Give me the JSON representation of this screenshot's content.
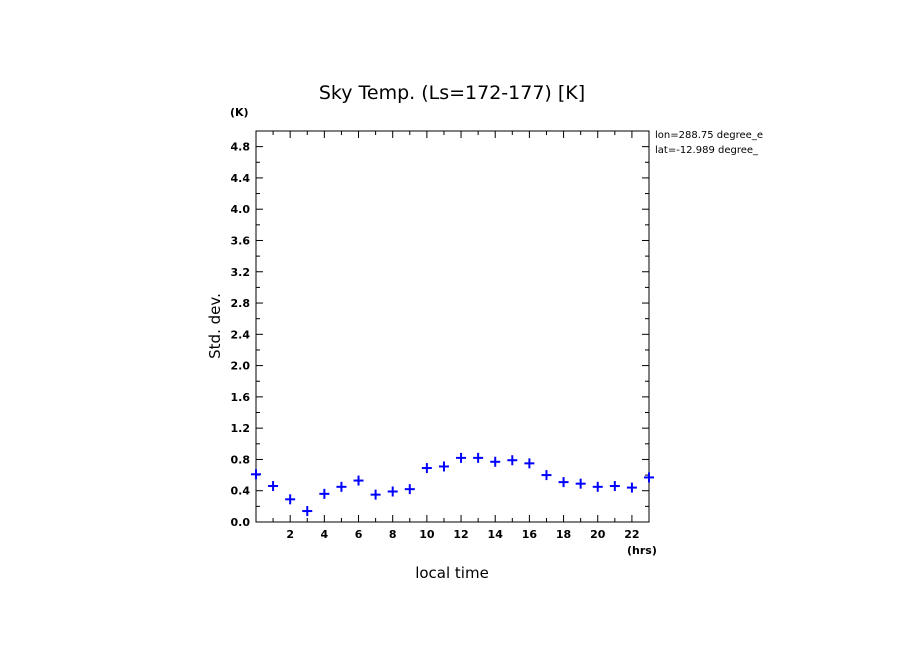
{
  "chart_data": {
    "type": "scatter",
    "title": "Sky Temp. (Ls=172-177) [K]",
    "ylabel": "Std. dev.",
    "yunit": "(K)",
    "xlabel": "local time",
    "xunit": "(hrs)",
    "annotations": [
      "lon=288.75 degree_e",
      "lat=-12.989 degree_"
    ],
    "xlim": [
      0,
      23
    ],
    "ylim": [
      0,
      5.0
    ],
    "xticks": [
      2,
      4,
      6,
      8,
      10,
      12,
      14,
      16,
      18,
      20,
      22
    ],
    "yticks": [
      0.0,
      0.4,
      0.8,
      1.2,
      1.6,
      2.0,
      2.4,
      2.8,
      3.2,
      3.6,
      4.0,
      4.4,
      4.8
    ],
    "marker_color": "#0000ff",
    "x": [
      0.0,
      1.0,
      2.0,
      3.0,
      4.0,
      5.0,
      6.0,
      7.0,
      8.0,
      9.0,
      10.0,
      11.0,
      12.0,
      13.0,
      14.0,
      15.0,
      16.0,
      17.0,
      18.0,
      19.0,
      20.0,
      21.0,
      22.0,
      23.0
    ],
    "y": [
      0.61,
      0.46,
      0.29,
      0.14,
      0.36,
      0.45,
      0.53,
      0.35,
      0.39,
      0.42,
      0.69,
      0.71,
      0.82,
      0.82,
      0.77,
      0.79,
      0.75,
      0.6,
      0.51,
      0.49,
      0.45,
      0.46,
      0.44,
      0.57
    ]
  }
}
